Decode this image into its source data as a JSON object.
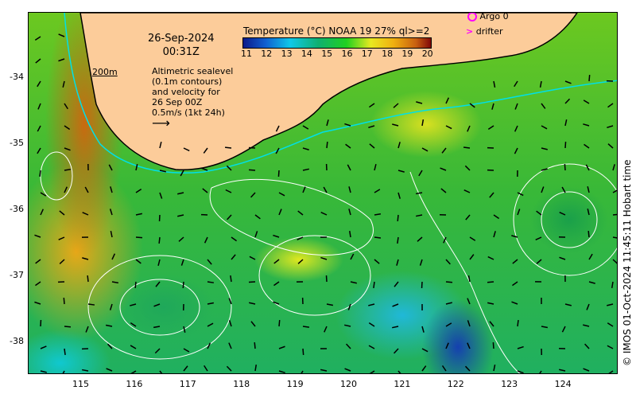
{
  "map": {
    "date": "26-Sep-2024",
    "time": "00:31Z",
    "colorbar": {
      "title": "Temperature (°C) NOAA 19 27% ql>=2",
      "ticks": [
        "11",
        "12",
        "13",
        "14",
        "15",
        "16",
        "17",
        "18",
        "19",
        "20"
      ]
    },
    "legend": {
      "argo": "Argo 0",
      "drifter": "drifter",
      "argo_color": "#ff00ff"
    },
    "scale_label": "200m",
    "note": [
      "Altimetric sealevel",
      "(0.1m contours)",
      "and velocity for",
      "26 Sep 00Z",
      "0.5m/s (1kt 24h)"
    ],
    "lat_ticks": [
      "-34",
      "-35",
      "-36",
      "-37",
      "-38"
    ],
    "lon_ticks": [
      "115",
      "116",
      "117",
      "118",
      "119",
      "120",
      "121",
      "122",
      "123",
      "124"
    ],
    "credit": "© IMOS 01-Oct-2024 11:45:11 Hobart time",
    "colors": {
      "land": "#fccc9a",
      "isobath": "#00e0e8"
    }
  }
}
